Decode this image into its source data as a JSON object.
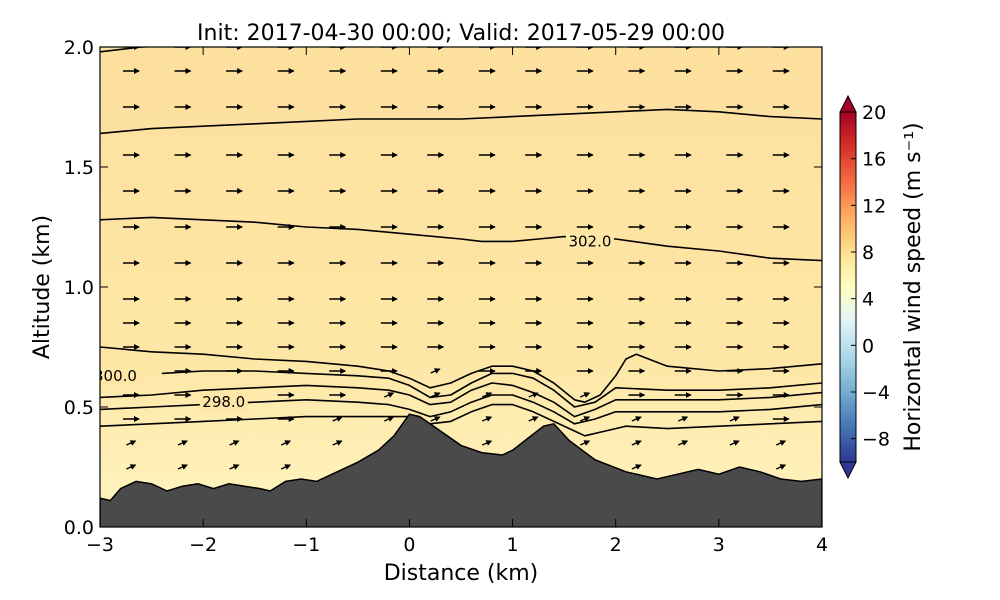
{
  "chart_data": {
    "type": "contour",
    "title": "Init: 2017-04-30 00:00; Valid: 2017-05-29 00:00",
    "xlabel": "Distance (km)",
    "ylabel": "Altitude (km)",
    "xlim": [
      -3,
      4
    ],
    "ylim": [
      0,
      2
    ],
    "x_ticks": [
      -3,
      -2,
      -1,
      0,
      1,
      2,
      3,
      4
    ],
    "x_tick_labels": [
      "−3",
      "−2",
      "−1",
      "0",
      "1",
      "2",
      "3",
      "4"
    ],
    "y_ticks": [
      0,
      0.5,
      1,
      1.5,
      2
    ],
    "y_tick_labels": [
      "0.0",
      "0.5",
      "1.0",
      "1.5",
      "2.0"
    ],
    "colorbar": {
      "label": "Horizontal wind speed (m s⁻¹)",
      "ticks": [
        -8,
        -4,
        0,
        4,
        8,
        12,
        16,
        20
      ],
      "tick_labels": [
        "−8",
        "−4",
        "0",
        "4",
        "8",
        "12",
        "16",
        "20"
      ],
      "range": [
        -10,
        20
      ],
      "colors": [
        "#313695",
        "#4575b4",
        "#74add1",
        "#abd9e9",
        "#e0f3f8",
        "#ffffbf",
        "#fee090",
        "#fdae61",
        "#f46d43",
        "#d73027",
        "#a50026"
      ],
      "extend": "both"
    },
    "background_fill": {
      "low_altitude": "#fff5c0",
      "high_altitude": "#fddf9e"
    },
    "terrain": {
      "color": "#4a4a4a",
      "profile_x": [
        -3,
        -2.9,
        -2.8,
        -2.65,
        -2.5,
        -2.35,
        -2.2,
        -2.05,
        -1.9,
        -1.75,
        -1.6,
        -1.45,
        -1.35,
        -1.2,
        -1.05,
        -0.9,
        -0.7,
        -0.5,
        -0.3,
        -0.15,
        0,
        0.1,
        0.3,
        0.5,
        0.7,
        0.9,
        1.0,
        1.15,
        1.3,
        1.4,
        1.55,
        1.8,
        2.1,
        2.4,
        2.6,
        2.8,
        3.0,
        3.2,
        3.4,
        3.6,
        3.8,
        4.0
      ],
      "profile_z": [
        0.12,
        0.11,
        0.16,
        0.19,
        0.18,
        0.15,
        0.17,
        0.18,
        0.16,
        0.18,
        0.17,
        0.16,
        0.15,
        0.19,
        0.2,
        0.19,
        0.23,
        0.27,
        0.32,
        0.38,
        0.47,
        0.46,
        0.4,
        0.34,
        0.31,
        0.3,
        0.32,
        0.37,
        0.42,
        0.43,
        0.36,
        0.28,
        0.23,
        0.2,
        0.22,
        0.24,
        0.22,
        0.25,
        0.23,
        0.2,
        0.19,
        0.2
      ]
    },
    "contours": [
      {
        "label": "",
        "x": [
          -3,
          -2.6,
          -2,
          -1.5,
          -1,
          -0.5,
          0,
          0.5,
          1,
          1.5,
          2,
          2.5,
          3,
          3.5,
          4
        ],
        "z": [
          1.98,
          2.0,
          2.01,
          2.02,
          2.02,
          2.02,
          2.02,
          2.02,
          2.02,
          2.02,
          2.02,
          2.02,
          2.02,
          2.02,
          2.02
        ]
      },
      {
        "label": "",
        "x": [
          -3,
          -2.5,
          -2,
          -1.5,
          -1,
          -0.5,
          0,
          0.5,
          1,
          1.5,
          2,
          2.5,
          3,
          3.5,
          4
        ],
        "z": [
          1.64,
          1.66,
          1.67,
          1.68,
          1.69,
          1.7,
          1.7,
          1.7,
          1.71,
          1.72,
          1.73,
          1.74,
          1.73,
          1.71,
          1.7
        ]
      },
      {
        "label": "302.0",
        "label_at": [
          1.75,
          1.19
        ],
        "x": [
          -3,
          -2.5,
          -2,
          -1.5,
          -1,
          -0.5,
          0,
          0.5,
          0.7,
          1.0,
          1.25,
          1.5,
          2.0,
          2.5,
          3.0,
          3.5,
          4.0
        ],
        "z": [
          1.28,
          1.29,
          1.28,
          1.27,
          1.25,
          1.24,
          1.22,
          1.2,
          1.19,
          1.19,
          1.2,
          1.21,
          1.2,
          1.17,
          1.15,
          1.12,
          1.11
        ]
      },
      {
        "label": "",
        "x": [
          -3,
          -2.5,
          -2,
          -1.5,
          -1,
          -0.5,
          -0.2,
          0,
          0.2,
          0.4,
          0.6,
          0.8,
          1.0,
          1.2,
          1.4,
          1.6,
          1.7,
          1.85,
          2.0,
          2.1,
          2.2,
          2.5,
          3.0,
          3.5,
          4.0
        ],
        "z": [
          0.75,
          0.73,
          0.72,
          0.7,
          0.69,
          0.67,
          0.65,
          0.62,
          0.58,
          0.6,
          0.64,
          0.67,
          0.67,
          0.65,
          0.6,
          0.53,
          0.52,
          0.55,
          0.63,
          0.7,
          0.72,
          0.67,
          0.65,
          0.66,
          0.68
        ]
      },
      {
        "label": "300.0",
        "label_at": [
          -2.85,
          0.63
        ],
        "x": [
          -2.4,
          -2,
          -1.5,
          -1,
          -0.5,
          -0.2,
          0,
          0.2,
          0.4,
          0.6,
          0.8,
          1.0,
          1.2,
          1.4,
          1.6,
          1.8,
          2.0,
          2.5,
          3.0,
          3.5,
          4.0
        ],
        "z": [
          0.64,
          0.65,
          0.65,
          0.64,
          0.63,
          0.62,
          0.59,
          0.54,
          0.55,
          0.6,
          0.64,
          0.64,
          0.62,
          0.57,
          0.5,
          0.52,
          0.58,
          0.57,
          0.57,
          0.58,
          0.6
        ]
      },
      {
        "label": "",
        "x": [
          -3,
          -2.5,
          -2,
          -1.5,
          -1,
          -0.5,
          -0.2,
          0,
          0.2,
          0.4,
          0.6,
          0.8,
          1.0,
          1.2,
          1.4,
          1.6,
          1.8,
          2.0,
          2.5,
          3.0,
          3.5,
          4.0
        ],
        "z": [
          0.54,
          0.55,
          0.57,
          0.58,
          0.59,
          0.58,
          0.57,
          0.55,
          0.51,
          0.52,
          0.57,
          0.6,
          0.59,
          0.56,
          0.52,
          0.46,
          0.49,
          0.53,
          0.53,
          0.53,
          0.54,
          0.56
        ]
      },
      {
        "label": "298.0",
        "label_at": [
          -1.8,
          0.52
        ],
        "x": [
          -3,
          -2.5,
          -2.0,
          -1.5,
          -1,
          -0.5,
          -0.2,
          0,
          0.2,
          0.4,
          0.6,
          0.8,
          1.0,
          1.2,
          1.4,
          1.6,
          1.8,
          2.0,
          2.5,
          3.0,
          3.5,
          4.0
        ],
        "z": [
          0.49,
          0.5,
          0.51,
          0.52,
          0.53,
          0.52,
          0.51,
          0.49,
          0.46,
          0.48,
          0.52,
          0.55,
          0.55,
          0.52,
          0.48,
          0.43,
          0.45,
          0.48,
          0.48,
          0.48,
          0.49,
          0.51
        ]
      },
      {
        "label": "",
        "x": [
          -3,
          -2.5,
          -2,
          -1.5,
          -1,
          -0.5,
          -0.2,
          0,
          0.2,
          0.4,
          0.6,
          0.8,
          1.0,
          1.2,
          1.4,
          1.6,
          1.7,
          1.9,
          2.1,
          2.5,
          3.0,
          3.5,
          4.0
        ],
        "z": [
          0.42,
          0.43,
          0.44,
          0.45,
          0.46,
          0.46,
          0.46,
          0.46,
          0.43,
          0.44,
          0.48,
          0.51,
          0.51,
          0.48,
          0.44,
          0.4,
          0.38,
          0.4,
          0.42,
          0.41,
          0.42,
          0.43,
          0.44
        ]
      }
    ],
    "wind_vectors": {
      "x_positions": [
        -2.7,
        -2.2,
        -1.7,
        -1.2,
        -0.7,
        -0.2,
        0.25,
        0.75,
        1.2,
        1.7,
        2.2,
        2.65,
        3.15,
        3.6
      ],
      "z_levels": [
        0.25,
        0.35,
        0.45,
        0.55,
        0.65,
        0.75,
        0.85,
        0.95,
        1.1,
        1.25,
        1.4,
        1.55,
        1.75,
        1.9,
        2.0
      ],
      "unit_speed_ms": 4.0
    }
  }
}
